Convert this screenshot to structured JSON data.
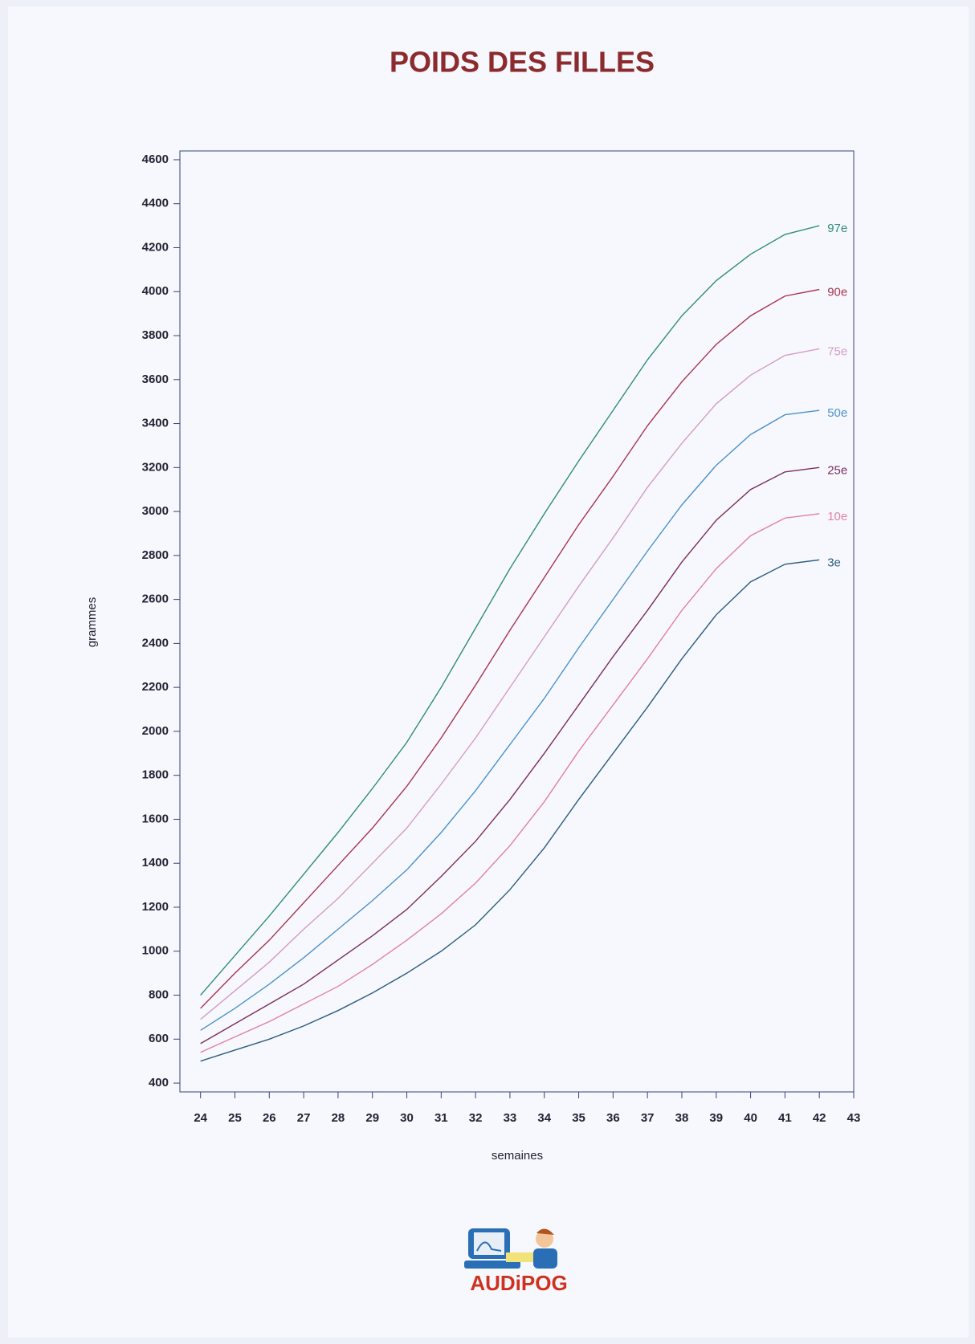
{
  "chart_data": {
    "type": "line",
    "title": "POIDS DES FILLES",
    "xlabel": "semaines",
    "ylabel": "grammes",
    "logo_text": "AUDiPOG",
    "x": [
      24,
      25,
      26,
      27,
      28,
      29,
      30,
      31,
      32,
      33,
      34,
      35,
      36,
      37,
      38,
      39,
      40,
      41,
      42
    ],
    "xlim": [
      23.4,
      43
    ],
    "xticks": [
      24,
      25,
      26,
      27,
      28,
      29,
      30,
      31,
      32,
      33,
      34,
      35,
      36,
      37,
      38,
      39,
      40,
      41,
      42,
      43
    ],
    "ylim": [
      360,
      4640
    ],
    "yticks": [
      400,
      600,
      800,
      1000,
      1200,
      1400,
      1600,
      1800,
      2000,
      2200,
      2400,
      2600,
      2800,
      3000,
      3200,
      3400,
      3600,
      3800,
      4000,
      4200,
      4400,
      4600
    ],
    "series": [
      {
        "name": "97e",
        "color": "#2f8c7c",
        "values": [
          800,
          980,
          1160,
          1350,
          1540,
          1740,
          1950,
          2200,
          2470,
          2740,
          2990,
          3230,
          3460,
          3690,
          3890,
          4050,
          4170,
          4260,
          4300
        ]
      },
      {
        "name": "90e",
        "color": "#a8334f",
        "values": [
          740,
          900,
          1050,
          1220,
          1390,
          1560,
          1750,
          1970,
          2210,
          2460,
          2700,
          2940,
          3160,
          3390,
          3590,
          3760,
          3890,
          3980,
          4010
        ]
      },
      {
        "name": "75e",
        "color": "#d39cc6",
        "values": [
          690,
          820,
          950,
          1100,
          1240,
          1400,
          1560,
          1760,
          1970,
          2200,
          2430,
          2660,
          2880,
          3110,
          3310,
          3490,
          3620,
          3710,
          3740
        ]
      },
      {
        "name": "50e",
        "color": "#4b92cc",
        "values": [
          640,
          740,
          850,
          970,
          1100,
          1230,
          1370,
          1540,
          1730,
          1940,
          2150,
          2380,
          2600,
          2820,
          3030,
          3210,
          3350,
          3440,
          3460
        ]
      },
      {
        "name": "25e",
        "color": "#7b2c5e",
        "values": [
          580,
          670,
          760,
          850,
          960,
          1070,
          1190,
          1340,
          1500,
          1690,
          1900,
          2120,
          2340,
          2550,
          2770,
          2960,
          3100,
          3180,
          3200
        ]
      },
      {
        "name": "10e",
        "color": "#e27fa6",
        "values": [
          540,
          610,
          680,
          760,
          840,
          940,
          1050,
          1170,
          1310,
          1480,
          1680,
          1910,
          2120,
          2330,
          2550,
          2740,
          2890,
          2970,
          2990
        ]
      },
      {
        "name": "3e",
        "color": "#2b5d80",
        "values": [
          500,
          550,
          600,
          660,
          730,
          810,
          900,
          1000,
          1120,
          1280,
          1470,
          1690,
          1900,
          2110,
          2330,
          2530,
          2680,
          2760,
          2780
        ]
      }
    ]
  }
}
